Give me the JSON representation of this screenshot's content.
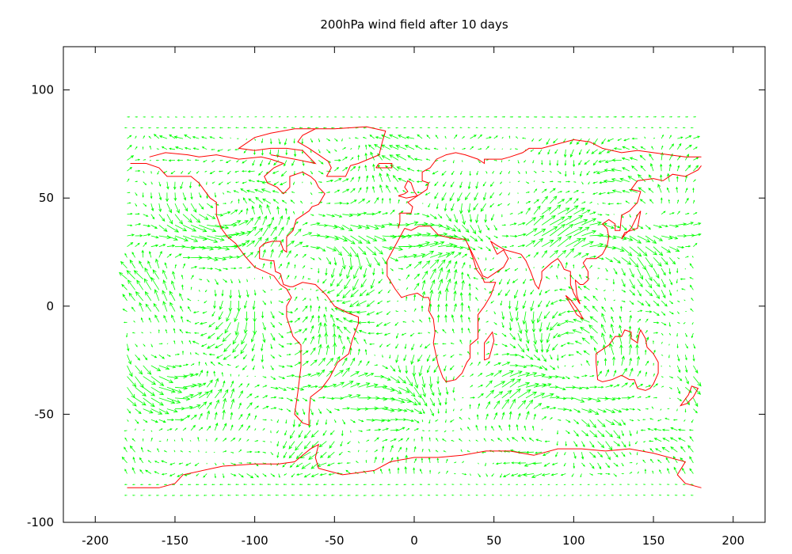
{
  "chart_data": {
    "type": "vector-field",
    "title": "200hPa wind field after 10 days",
    "xlabel": "",
    "ylabel": "",
    "xlim": [
      -220,
      220
    ],
    "ylim": [
      -100,
      120
    ],
    "x_ticks": [
      -200,
      -150,
      -100,
      -50,
      0,
      50,
      100,
      150,
      200
    ],
    "y_ticks": [
      -100,
      -50,
      0,
      50,
      100
    ],
    "grid": false,
    "legend": "none",
    "series": [
      {
        "kind": "wind-vectors",
        "color": "#00ff00",
        "lon_range": [
          -180,
          180
        ],
        "lat_range": [
          -87.5,
          87.5
        ]
      },
      {
        "kind": "coastlines",
        "color": "#ff0000"
      }
    ],
    "coastlines": [
      [
        [
          -178,
          66
        ],
        [
          -168,
          66
        ],
        [
          -160,
          64
        ],
        [
          -155,
          60
        ],
        [
          -150,
          60
        ],
        [
          -140,
          60
        ],
        [
          -135,
          57
        ],
        [
          -132,
          54
        ],
        [
          -128,
          50
        ],
        [
          -124,
          48
        ],
        [
          -124,
          42
        ],
        [
          -121,
          36
        ],
        [
          -117,
          32
        ],
        [
          -112,
          29
        ],
        [
          -106,
          23
        ],
        [
          -100,
          18
        ],
        [
          -94,
          16
        ],
        [
          -88,
          14
        ],
        [
          -84,
          10
        ],
        [
          -80,
          8
        ],
        [
          -77,
          4
        ],
        [
          -80,
          0
        ],
        [
          -80,
          -5
        ],
        [
          -76,
          -14
        ],
        [
          -71,
          -18
        ],
        [
          -71,
          -28
        ],
        [
          -73,
          -40
        ],
        [
          -75,
          -50
        ],
        [
          -70,
          -54
        ],
        [
          -66,
          -55
        ],
        [
          -66,
          -50
        ],
        [
          -65,
          -42
        ],
        [
          -58,
          -38
        ],
        [
          -53,
          -33
        ],
        [
          -48,
          -26
        ],
        [
          -41,
          -22
        ],
        [
          -39,
          -16
        ],
        [
          -35,
          -8
        ],
        [
          -35,
          -5
        ],
        [
          -42,
          -3
        ],
        [
          -50,
          0
        ],
        [
          -55,
          5
        ],
        [
          -62,
          10
        ],
        [
          -70,
          11
        ],
        [
          -76,
          9
        ],
        [
          -78,
          9
        ],
        [
          -82,
          10
        ],
        [
          -84,
          15
        ],
        [
          -87,
          16
        ],
        [
          -88,
          21
        ],
        [
          -90,
          21
        ],
        [
          -97,
          22
        ],
        [
          -97,
          27
        ],
        [
          -94,
          29
        ],
        [
          -89,
          30
        ],
        [
          -84,
          30
        ],
        [
          -82,
          26
        ],
        [
          -80,
          25
        ],
        [
          -80,
          32
        ],
        [
          -76,
          35
        ],
        [
          -74,
          40
        ],
        [
          -70,
          42
        ],
        [
          -66,
          44
        ],
        [
          -64,
          46
        ],
        [
          -60,
          47
        ],
        [
          -56,
          52
        ],
        [
          -60,
          55
        ],
        [
          -62,
          58
        ],
        [
          -65,
          60
        ],
        [
          -70,
          62
        ],
        [
          -78,
          60
        ],
        [
          -78,
          55
        ],
        [
          -82,
          52
        ],
        [
          -86,
          55
        ],
        [
          -92,
          57
        ],
        [
          -94,
          60
        ],
        [
          -88,
          64
        ],
        [
          -82,
          66
        ],
        [
          -90,
          68
        ],
        [
          -96,
          69
        ],
        [
          -110,
          68
        ],
        [
          -124,
          70
        ],
        [
          -135,
          69
        ],
        [
          -142,
          70
        ],
        [
          -156,
          71
        ],
        [
          -166,
          69
        ]
      ],
      [
        [
          -55,
          60
        ],
        [
          -43,
          60
        ],
        [
          -40,
          65
        ],
        [
          -35,
          66
        ],
        [
          -22,
          70
        ],
        [
          -20,
          76
        ],
        [
          -18,
          81
        ],
        [
          -30,
          83
        ],
        [
          -50,
          82
        ],
        [
          -62,
          82
        ],
        [
          -70,
          79
        ],
        [
          -73,
          76
        ],
        [
          -66,
          73
        ],
        [
          -60,
          70
        ],
        [
          -54,
          67
        ],
        [
          -52,
          64
        ],
        [
          -55,
          60
        ]
      ],
      [
        [
          -10,
          36
        ],
        [
          -9,
          39
        ],
        [
          -9,
          43
        ],
        [
          -2,
          43
        ],
        [
          -1,
          46
        ],
        [
          -4,
          48
        ],
        [
          2,
          51
        ],
        [
          4,
          52
        ],
        [
          8,
          54
        ],
        [
          9,
          57
        ],
        [
          5,
          58
        ],
        [
          5,
          62
        ],
        [
          10,
          64
        ],
        [
          14,
          68
        ],
        [
          20,
          70
        ],
        [
          26,
          71
        ],
        [
          32,
          70
        ],
        [
          40,
          68
        ],
        [
          44,
          66
        ],
        [
          44,
          68
        ],
        [
          55,
          68
        ],
        [
          60,
          69
        ],
        [
          68,
          71
        ],
        [
          72,
          73
        ],
        [
          80,
          73
        ],
        [
          90,
          75
        ],
        [
          100,
          77
        ],
        [
          110,
          76
        ],
        [
          118,
          73
        ],
        [
          130,
          71
        ],
        [
          140,
          72
        ],
        [
          150,
          71
        ],
        [
          160,
          70
        ],
        [
          170,
          69
        ],
        [
          180,
          69
        ]
      ],
      [
        [
          -6,
          36
        ],
        [
          -17,
          21
        ],
        [
          -17,
          14
        ],
        [
          -12,
          8
        ],
        [
          -8,
          4
        ],
        [
          -4,
          5
        ],
        [
          2,
          6
        ],
        [
          6,
          4
        ],
        [
          9,
          4
        ],
        [
          10,
          2
        ],
        [
          9,
          -2
        ],
        [
          12,
          -6
        ],
        [
          13,
          -12
        ],
        [
          12,
          -17
        ],
        [
          15,
          -27
        ],
        [
          18,
          -33
        ],
        [
          20,
          -35
        ],
        [
          26,
          -34
        ],
        [
          30,
          -31
        ],
        [
          33,
          -26
        ],
        [
          35,
          -24
        ],
        [
          35,
          -18
        ],
        [
          40,
          -15
        ],
        [
          40,
          -10
        ],
        [
          40,
          -4
        ],
        [
          44,
          0
        ],
        [
          48,
          5
        ],
        [
          51,
          11
        ],
        [
          44,
          11
        ],
        [
          43,
          13
        ],
        [
          39,
          17
        ],
        [
          37,
          22
        ],
        [
          34,
          28
        ],
        [
          32,
          31
        ],
        [
          27,
          31
        ],
        [
          20,
          32
        ],
        [
          15,
          33
        ],
        [
          10,
          37
        ],
        [
          3,
          37
        ],
        [
          -2,
          35
        ],
        [
          -6,
          36
        ]
      ],
      [
        [
          34,
          28
        ],
        [
          38,
          22
        ],
        [
          43,
          14
        ],
        [
          46,
          13
        ],
        [
          52,
          16
        ],
        [
          56,
          18
        ],
        [
          59,
          22
        ],
        [
          56,
          26
        ],
        [
          52,
          24
        ],
        [
          50,
          27
        ],
        [
          48,
          30
        ],
        [
          52,
          28
        ],
        [
          57,
          26
        ],
        [
          62,
          25
        ],
        [
          67,
          24
        ],
        [
          70,
          21
        ],
        [
          73,
          16
        ],
        [
          76,
          10
        ],
        [
          78,
          8
        ],
        [
          80,
          13
        ],
        [
          80,
          16
        ],
        [
          86,
          20
        ],
        [
          90,
          22
        ],
        [
          92,
          20
        ],
        [
          94,
          17
        ],
        [
          98,
          16
        ],
        [
          98,
          10
        ],
        [
          100,
          6
        ],
        [
          103,
          2
        ],
        [
          104,
          1
        ],
        [
          102,
          5
        ],
        [
          101,
          12
        ],
        [
          104,
          10
        ],
        [
          106,
          10
        ],
        [
          109,
          12
        ],
        [
          109,
          16
        ],
        [
          106,
          20
        ],
        [
          108,
          22
        ],
        [
          114,
          22
        ],
        [
          118,
          24
        ],
        [
          121,
          28
        ],
        [
          122,
          32
        ],
        [
          121,
          36
        ],
        [
          118,
          38
        ],
        [
          122,
          40
        ],
        [
          126,
          38
        ],
        [
          126,
          35
        ],
        [
          129,
          35
        ],
        [
          130,
          42
        ],
        [
          135,
          44
        ],
        [
          140,
          48
        ],
        [
          142,
          53
        ],
        [
          136,
          54
        ],
        [
          140,
          58
        ],
        [
          150,
          59
        ],
        [
          156,
          58
        ],
        [
          162,
          61
        ],
        [
          170,
          60
        ],
        [
          178,
          63
        ],
        [
          180,
          65
        ]
      ],
      [
        [
          114,
          -22
        ],
        [
          114,
          -26
        ],
        [
          115,
          -34
        ],
        [
          118,
          -35
        ],
        [
          124,
          -34
        ],
        [
          130,
          -32
        ],
        [
          135,
          -34
        ],
        [
          138,
          -34
        ],
        [
          140,
          -38
        ],
        [
          145,
          -39
        ],
        [
          148,
          -38
        ],
        [
          150,
          -36
        ],
        [
          153,
          -31
        ],
        [
          153,
          -26
        ],
        [
          150,
          -22
        ],
        [
          146,
          -19
        ],
        [
          145,
          -15
        ],
        [
          142,
          -11
        ],
        [
          141,
          -13
        ],
        [
          140,
          -17
        ],
        [
          136,
          -15
        ],
        [
          136,
          -12
        ],
        [
          132,
          -11
        ],
        [
          130,
          -14
        ],
        [
          126,
          -14
        ],
        [
          122,
          -18
        ],
        [
          114,
          -22
        ]
      ],
      [
        [
          95,
          5
        ],
        [
          98,
          3
        ],
        [
          103,
          -2
        ],
        [
          106,
          -6
        ],
        [
          102,
          -4
        ],
        [
          98,
          1
        ],
        [
          95,
          5
        ]
      ],
      [
        [
          130,
          31
        ],
        [
          132,
          34
        ],
        [
          136,
          35
        ],
        [
          140,
          36
        ],
        [
          141,
          40
        ],
        [
          142,
          44
        ],
        [
          140,
          42
        ],
        [
          136,
          36
        ],
        [
          132,
          33
        ],
        [
          130,
          31
        ]
      ],
      [
        [
          44,
          -25
        ],
        [
          47,
          -24
        ],
        [
          50,
          -16
        ],
        [
          49,
          -12
        ],
        [
          44,
          -17
        ],
        [
          44,
          -25
        ]
      ],
      [
        [
          172,
          -41
        ],
        [
          174,
          -37
        ],
        [
          178,
          -38
        ],
        [
          175,
          -42
        ],
        [
          171,
          -45
        ],
        [
          167,
          -46
        ],
        [
          172,
          -41
        ]
      ],
      [
        [
          -180,
          -84
        ],
        [
          -160,
          -84
        ],
        [
          -150,
          -82
        ],
        [
          -145,
          -78
        ],
        [
          -120,
          -74
        ],
        [
          -100,
          -73
        ],
        [
          -85,
          -73
        ],
        [
          -75,
          -72
        ],
        [
          -65,
          -66
        ],
        [
          -60,
          -64
        ],
        [
          -62,
          -70
        ],
        [
          -60,
          -75
        ],
        [
          -45,
          -78
        ],
        [
          -35,
          -77
        ],
        [
          -25,
          -76
        ],
        [
          -15,
          -72
        ],
        [
          0,
          -70
        ],
        [
          15,
          -70
        ],
        [
          30,
          -69
        ],
        [
          45,
          -67
        ],
        [
          60,
          -67
        ],
        [
          75,
          -69
        ],
        [
          90,
          -66
        ],
        [
          105,
          -66
        ],
        [
          120,
          -67
        ],
        [
          135,
          -66
        ],
        [
          150,
          -68
        ],
        [
          165,
          -71
        ],
        [
          170,
          -72
        ],
        [
          165,
          -78
        ],
        [
          170,
          -82
        ],
        [
          180,
          -84
        ]
      ],
      [
        [
          -10,
          51
        ],
        [
          -6,
          52
        ],
        [
          -4,
          53
        ],
        [
          -6,
          55
        ],
        [
          -4,
          58
        ],
        [
          -2,
          57
        ],
        [
          0,
          53
        ],
        [
          2,
          51
        ],
        [
          -5,
          50
        ],
        [
          -10,
          51
        ]
      ],
      [
        [
          -24,
          64
        ],
        [
          -14,
          64
        ],
        [
          -14,
          66
        ],
        [
          -22,
          66
        ],
        [
          -24,
          64
        ]
      ],
      [
        [
          -90,
          70
        ],
        [
          -75,
          68
        ],
        [
          -62,
          66
        ],
        [
          -70,
          72
        ],
        [
          -80,
          73
        ],
        [
          -90,
          73
        ],
        [
          -100,
          72
        ],
        [
          -110,
          73
        ],
        [
          -100,
          78
        ],
        [
          -90,
          80
        ],
        [
          -75,
          82
        ],
        [
          -62,
          82
        ]
      ]
    ]
  }
}
